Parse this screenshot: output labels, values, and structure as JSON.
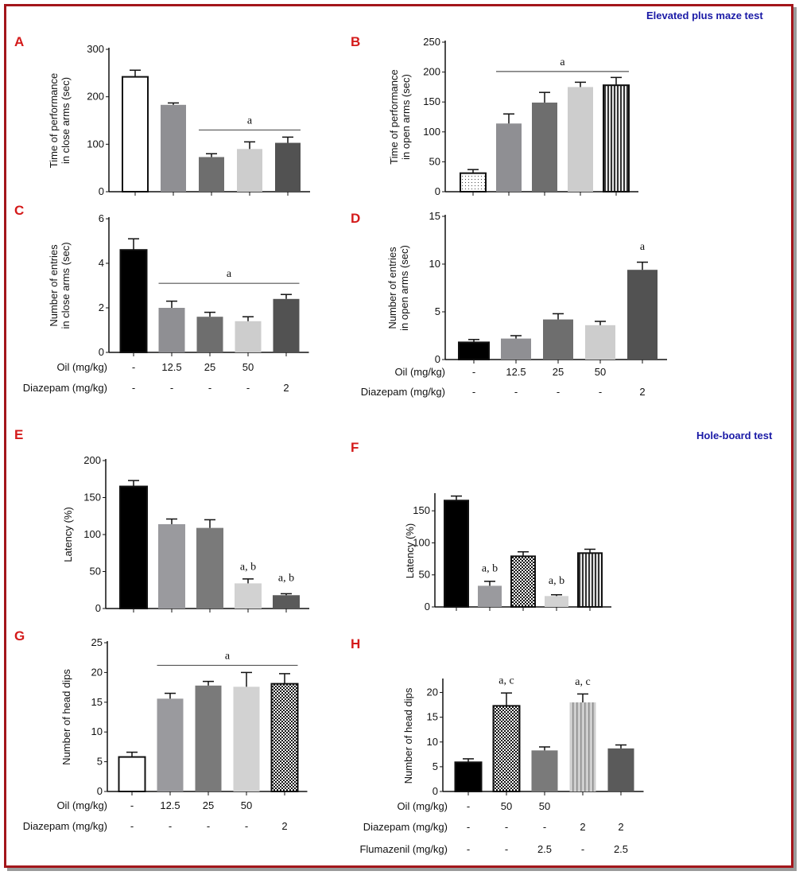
{
  "sections": {
    "epm_title": "Elevated plus maze test",
    "hb_title": "Hole-board test"
  },
  "colors": {
    "frame": "#a3161b",
    "panel_letter": "#d41a1a",
    "section_title": "#1a1aa6"
  },
  "chart_data": [
    {
      "id": "A",
      "type": "bar",
      "ylabel": [
        "Time of performance",
        "in close arms  (sec)"
      ],
      "ylim": [
        0,
        300
      ],
      "yticks": [
        0,
        100,
        200,
        300
      ],
      "values": [
        242,
        183,
        73,
        90,
        103
      ],
      "errors": [
        14,
        4,
        7,
        15,
        12
      ],
      "fills": [
        "white",
        "#8f8f93",
        "#6e6e6e",
        "#cdcdcd",
        "#525252"
      ],
      "annotations": [
        {
          "text": "a",
          "from": 2,
          "to": 4,
          "line": true,
          "y": 130
        }
      ],
      "treatment_rows": []
    },
    {
      "id": "B",
      "type": "bar",
      "ylabel": [
        "Time of performance",
        "in open arms (sec)"
      ],
      "ylim": [
        0,
        250
      ],
      "yticks": [
        0,
        50,
        100,
        150,
        200,
        250
      ],
      "values": [
        31,
        114,
        149,
        175,
        178
      ],
      "errors": [
        6,
        16,
        17,
        8,
        13
      ],
      "fills": [
        "dots",
        "#8f8f93",
        "#6e6e6e",
        "#cdcdcd",
        "vstripes"
      ],
      "annotations": [
        {
          "text": "a",
          "from": 1,
          "to": 4,
          "line": true,
          "y": 201
        }
      ],
      "treatment_rows": []
    },
    {
      "id": "C",
      "type": "bar",
      "ylabel": [
        "Number of entries",
        "in close arms  (sec)"
      ],
      "ylim": [
        0,
        6
      ],
      "yticks": [
        0,
        2,
        4,
        6
      ],
      "values": [
        4.6,
        2.0,
        1.6,
        1.4,
        2.4
      ],
      "errors": [
        0.5,
        0.3,
        0.2,
        0.2,
        0.2
      ],
      "fills": [
        "#000000",
        "#8f8f93",
        "#6e6e6e",
        "#cdcdcd",
        "#525252"
      ],
      "annotations": [
        {
          "text": "a",
          "from": 1,
          "to": 4,
          "line": true,
          "y": 3.1
        }
      ],
      "treatment_rows": [
        {
          "label": "Oil (mg/kg)",
          "values": [
            "-",
            "12.5",
            "25",
            "50",
            ""
          ]
        },
        {
          "label": "Diazepam (mg/kg)",
          "values": [
            "-",
            "-",
            "-",
            "-",
            "2"
          ]
        }
      ]
    },
    {
      "id": "D",
      "type": "bar",
      "ylabel": [
        "Number of entries",
        "in open arms  (sec)"
      ],
      "ylim": [
        0,
        15
      ],
      "yticks": [
        0,
        5,
        10,
        15
      ],
      "values": [
        1.8,
        2.2,
        4.2,
        3.6,
        9.4
      ],
      "errors": [
        0.3,
        0.3,
        0.6,
        0.4,
        0.8
      ],
      "fills": [
        "#000000",
        "#8f8f93",
        "#6e6e6e",
        "#cdcdcd",
        "#525252"
      ],
      "annotations": [
        {
          "text": "a",
          "from": 4,
          "to": 4,
          "line": false,
          "y": 11.5
        }
      ],
      "treatment_rows": [
        {
          "label": "Oil (mg/kg)",
          "values": [
            "-",
            "12.5",
            "25",
            "50",
            ""
          ]
        },
        {
          "label": "Diazepam (mg/kg)",
          "values": [
            "-",
            "-",
            "-",
            "-",
            "2"
          ]
        }
      ]
    },
    {
      "id": "E",
      "type": "bar",
      "ylabel": [
        "Latency (%)"
      ],
      "ylim": [
        0,
        200
      ],
      "yticks": [
        0,
        50,
        100,
        150,
        200
      ],
      "values": [
        165,
        114,
        109,
        34,
        18
      ],
      "errors": [
        8,
        7,
        11,
        6,
        2
      ],
      "fills": [
        "#000000",
        "#9a9a9e",
        "#7a7a7a",
        "#d2d2d2",
        "#5a5a5a"
      ],
      "annotations": [
        {
          "text": "a, b",
          "from": 3,
          "to": 3,
          "line": false,
          "y": 52
        },
        {
          "text": "a, b",
          "from": 4,
          "to": 4,
          "line": false,
          "y": 37
        }
      ],
      "treatment_rows": []
    },
    {
      "id": "F",
      "type": "bar",
      "ylabel": [
        "Latency (%)"
      ],
      "ylim": [
        0,
        175
      ],
      "yticks": [
        0,
        50,
        100,
        150
      ],
      "values": [
        166,
        33,
        79,
        17,
        84
      ],
      "errors": [
        7,
        7,
        7,
        2,
        6
      ],
      "fills": [
        "#000000",
        "#9a9a9e",
        "checker",
        "#d2d2d2",
        "vstripes"
      ],
      "annotations": [
        {
          "text": "a, b",
          "from": 1,
          "to": 1,
          "line": false,
          "y": 55
        },
        {
          "text": "a, b",
          "from": 3,
          "to": 3,
          "line": false,
          "y": 36
        }
      ],
      "treatment_rows": []
    },
    {
      "id": "G",
      "type": "bar",
      "ylabel": [
        "Number of head dips"
      ],
      "ylim": [
        0,
        25
      ],
      "yticks": [
        0,
        5,
        10,
        15,
        20,
        25
      ],
      "values": [
        5.8,
        15.6,
        17.8,
        17.6,
        18.1
      ],
      "errors": [
        0.8,
        0.9,
        0.7,
        2.4,
        1.7
      ],
      "fills": [
        "white",
        "#9a9a9e",
        "#7a7a7a",
        "#d2d2d2",
        "checker"
      ],
      "annotations": [
        {
          "text": "a",
          "from": 1,
          "to": 4,
          "line": true,
          "y": 21.2
        }
      ],
      "treatment_rows": [
        {
          "label": "Oil (mg/kg)",
          "values": [
            "-",
            "12.5",
            "25",
            "50",
            ""
          ]
        },
        {
          "label": "Diazepam (mg/kg)",
          "values": [
            "-",
            "-",
            "-",
            "-",
            "2"
          ]
        }
      ]
    },
    {
      "id": "H",
      "type": "bar",
      "ylabel": [
        "Number of head dips"
      ],
      "ylim": [
        0,
        22.5
      ],
      "yticks": [
        0,
        5,
        10,
        15,
        20
      ],
      "values": [
        5.9,
        17.3,
        8.3,
        18.0,
        8.7
      ],
      "errors": [
        0.7,
        2.6,
        0.7,
        1.7,
        0.7
      ],
      "fills": [
        "#000000",
        "checker",
        "#7a7a7a",
        "vstripes-light",
        "#5a5a5a"
      ],
      "annotations": [
        {
          "text": "a, c",
          "from": 1,
          "to": 1,
          "line": false,
          "y": 21.8
        },
        {
          "text": "a, c",
          "from": 3,
          "to": 3,
          "line": false,
          "y": 21.5
        }
      ],
      "treatment_rows": [
        {
          "label": "Oil (mg/kg)",
          "values": [
            "-",
            "50",
            "50",
            "",
            ""
          ]
        },
        {
          "label": "Diazepam (mg/kg)",
          "values": [
            "-",
            "-",
            "-",
            "2",
            "2"
          ]
        },
        {
          "label": "Flumazenil (mg/kg)",
          "values": [
            "-",
            "-",
            "2.5",
            "-",
            "2.5"
          ]
        }
      ]
    }
  ]
}
